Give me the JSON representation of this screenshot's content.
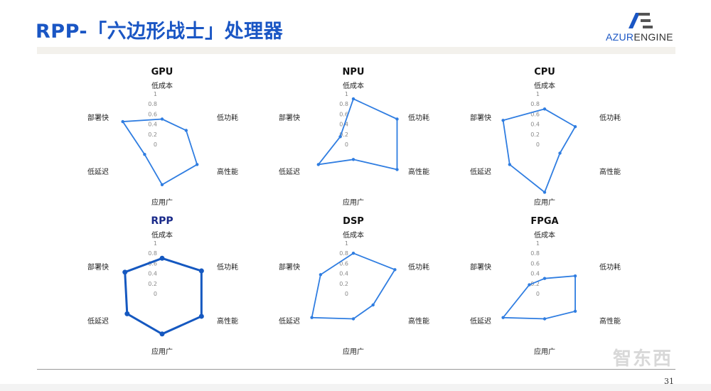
{
  "header": {
    "title": "RPP-「六边形战士」处理器",
    "logo_text_a": "AZUR",
    "logo_text_b": "ENGINE"
  },
  "footer": {
    "page_number": "31",
    "watermark": "智东西"
  },
  "chart_data": [
    {
      "type": "radar",
      "title": "GPU",
      "axes": [
        "低成本",
        "低功耗",
        "高性能",
        "应用广",
        "低延迟",
        "部署快"
      ],
      "ticks": [
        "1",
        "0.8",
        "0.6",
        "0.4",
        "0.2",
        "0"
      ],
      "range": [
        0,
        1
      ],
      "values": [
        0.5,
        0.55,
        0.8,
        0.8,
        0.4,
        0.9
      ],
      "color": "#2f7de1"
    },
    {
      "type": "radar",
      "title": "NPU",
      "axes": [
        "低成本",
        "低功耗",
        "高性能",
        "应用广",
        "低延迟",
        "部署快"
      ],
      "ticks": [
        "1",
        "0.8",
        "0.6",
        "0.4",
        "0.2",
        "0"
      ],
      "range": [
        0,
        1
      ],
      "values": [
        0.9,
        1.0,
        1.0,
        0.3,
        0.8,
        0.3
      ],
      "color": "#2f7de1"
    },
    {
      "type": "radar",
      "title": "CPU",
      "axes": [
        "低成本",
        "低功耗",
        "高性能",
        "应用广",
        "低延迟",
        "部署快"
      ],
      "ticks": [
        "1",
        "0.8",
        "0.6",
        "0.4",
        "0.2",
        "0"
      ],
      "range": [
        0,
        1
      ],
      "values": [
        0.7,
        0.7,
        0.35,
        0.95,
        0.8,
        0.95
      ],
      "color": "#2f7de1"
    },
    {
      "type": "radar",
      "title": "RPP",
      "title_color": "#1a2a8a",
      "axes": [
        "低成本",
        "低功耗",
        "高性能",
        "应用广",
        "低延迟",
        "部署快"
      ],
      "ticks": [
        "1",
        "0.8",
        "0.6",
        "0.4",
        "0.2",
        "0"
      ],
      "range": [
        0,
        1
      ],
      "values": [
        0.7,
        0.9,
        0.9,
        0.8,
        0.8,
        0.85
      ],
      "color": "#1558c0"
    },
    {
      "type": "radar",
      "title": "DSP",
      "axes": [
        "低成本",
        "低功耗",
        "高性能",
        "应用广",
        "低延迟",
        "部署快"
      ],
      "ticks": [
        "1",
        "0.8",
        "0.6",
        "0.4",
        "0.2",
        "0"
      ],
      "range": [
        0,
        1
      ],
      "values": [
        0.8,
        0.95,
        0.45,
        0.5,
        0.95,
        0.75
      ],
      "color": "#2f7de1"
    },
    {
      "type": "radar",
      "title": "FPGA",
      "axes": [
        "低成本",
        "低功耗",
        "高性能",
        "应用广",
        "低延迟",
        "部署快"
      ],
      "ticks": [
        "1",
        "0.8",
        "0.6",
        "0.4",
        "0.2",
        "0"
      ],
      "range": [
        0,
        1
      ],
      "values": [
        0.3,
        0.7,
        0.7,
        0.5,
        0.95,
        0.35
      ],
      "color": "#2f7de1"
    }
  ]
}
